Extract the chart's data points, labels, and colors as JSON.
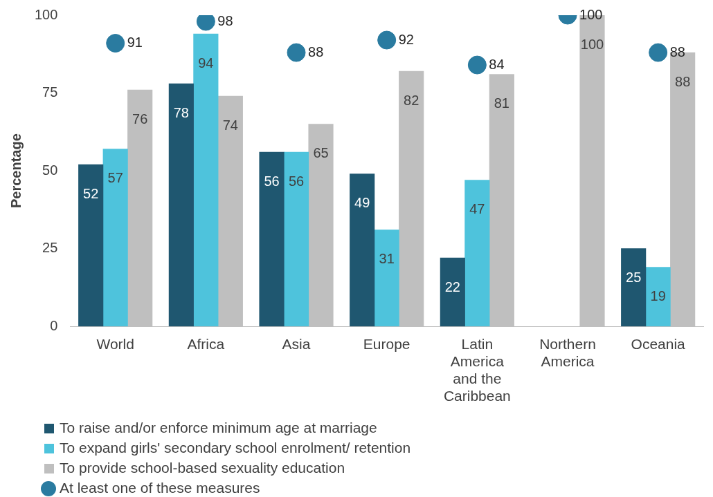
{
  "chart_data": {
    "type": "bar",
    "ylabel": "Percentage",
    "categories": [
      "World",
      "Africa",
      "Asia",
      "Europe",
      "Latin America and the Caribbean",
      "Northern America",
      "Oceania"
    ],
    "series": [
      {
        "name": "To raise and/or enforce minimum age at marriage",
        "color": "#1f5770",
        "values": [
          52,
          78,
          56,
          49,
          22,
          null,
          25
        ]
      },
      {
        "name": "To expand girls' secondary school enrolment/ retention",
        "color": "#4ec3dc",
        "values": [
          57,
          94,
          56,
          31,
          47,
          null,
          19
        ]
      },
      {
        "name": "To provide school-based sexuality education",
        "color": "#bfbfbf",
        "values": [
          76,
          74,
          65,
          82,
          81,
          100,
          88
        ]
      },
      {
        "name": "At least one of these measures",
        "type": "scatter",
        "color": "#2a7ba0",
        "x": [
          "World",
          "Africa",
          "Asia",
          "Europe",
          "Latin America and the Caribbean",
          "Northern America",
          "Oceania"
        ],
        "values": [
          91,
          98,
          88,
          92,
          84,
          100,
          88
        ]
      }
    ],
    "ylim": [
      0,
      100
    ],
    "yticks": [
      0,
      25,
      50,
      75,
      100
    ],
    "grid": false,
    "legend": "bottom left",
    "marker": "circle",
    "data_labels": true
  }
}
